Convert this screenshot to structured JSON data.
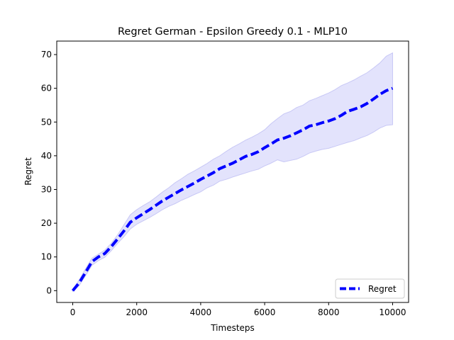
{
  "chart_data": {
    "type": "line",
    "title": "Regret German - Epsilon Greedy 0.1 - MLP10",
    "xlabel": "Timesteps",
    "ylabel": "Regret",
    "xlim": [
      -500,
      10500
    ],
    "ylim": [
      -3.5,
      74
    ],
    "xticks": [
      0,
      2000,
      4000,
      6000,
      8000,
      10000
    ],
    "xtick_labels": [
      "0",
      "2000",
      "4000",
      "6000",
      "8000",
      "10000"
    ],
    "yticks": [
      0,
      10,
      20,
      30,
      40,
      50,
      60,
      70
    ],
    "ytick_labels": [
      "0",
      "10",
      "20",
      "30",
      "40",
      "50",
      "60",
      "70"
    ],
    "grid": false,
    "legend_position": "lower-right",
    "colors": {
      "line": "#0000ff",
      "band": "#e3e3fc",
      "band_edge": "#c8c8f5",
      "frame": "#000000"
    },
    "x": [
      0,
      200,
      400,
      600,
      800,
      1000,
      1200,
      1400,
      1600,
      1800,
      2000,
      2200,
      2400,
      2600,
      2800,
      3000,
      3200,
      3400,
      3600,
      3800,
      4000,
      4200,
      4400,
      4600,
      4800,
      5000,
      5200,
      5400,
      5600,
      5800,
      6000,
      6200,
      6400,
      6600,
      6800,
      7000,
      7200,
      7400,
      7600,
      7800,
      8000,
      8200,
      8400,
      8600,
      8800,
      9000,
      9200,
      9400,
      9600,
      9800,
      10000
    ],
    "series": [
      {
        "name": "Regret",
        "style": "dashed",
        "values": [
          0,
          2.3,
          5.4,
          8.6,
          10.0,
          11.0,
          13.0,
          15.3,
          17.7,
          20.3,
          21.6,
          22.8,
          24.0,
          25.3,
          26.6,
          27.7,
          28.8,
          29.9,
          30.9,
          31.9,
          33.0,
          34.0,
          35.0,
          36.2,
          37.0,
          37.8,
          38.8,
          39.8,
          40.4,
          41.2,
          42.4,
          43.5,
          44.7,
          45.2,
          45.9,
          46.8,
          47.7,
          48.8,
          49.2,
          49.8,
          50.3,
          51.0,
          52.0,
          53.2,
          53.8,
          54.5,
          55.5,
          56.8,
          58.2,
          59.3,
          60.0
        ]
      }
    ],
    "band": {
      "upper": [
        0.2,
        3.2,
        6.5,
        9.6,
        10.8,
        12.0,
        14.0,
        16.5,
        19.5,
        22.5,
        24.0,
        25.2,
        26.3,
        27.7,
        29.2,
        30.5,
        32.0,
        33.2,
        34.5,
        35.5,
        36.6,
        37.7,
        39.0,
        40.0,
        41.3,
        42.5,
        43.5,
        44.6,
        45.5,
        46.5,
        47.7,
        49.5,
        51.0,
        52.4,
        53.1,
        54.3,
        55.0,
        56.3,
        57.0,
        57.8,
        58.6,
        59.6,
        60.8,
        61.6,
        62.5,
        63.6,
        64.6,
        66.0,
        67.5,
        69.5,
        70.5
      ],
      "lower": [
        -0.2,
        1.5,
        4.4,
        7.5,
        8.9,
        9.9,
        11.8,
        14.0,
        16.0,
        18.3,
        19.7,
        20.7,
        21.7,
        22.8,
        24.0,
        25.0,
        25.8,
        26.8,
        27.6,
        28.5,
        29.3,
        30.5,
        31.3,
        32.5,
        33.0,
        33.7,
        34.3,
        34.9,
        35.5,
        36.0,
        37.0,
        37.8,
        38.8,
        38.2,
        38.6,
        39.0,
        39.8,
        40.8,
        41.4,
        41.9,
        42.2,
        42.8,
        43.4,
        44.0,
        44.5,
        45.3,
        46.0,
        47.0,
        48.2,
        49.0,
        49.2
      ]
    }
  }
}
